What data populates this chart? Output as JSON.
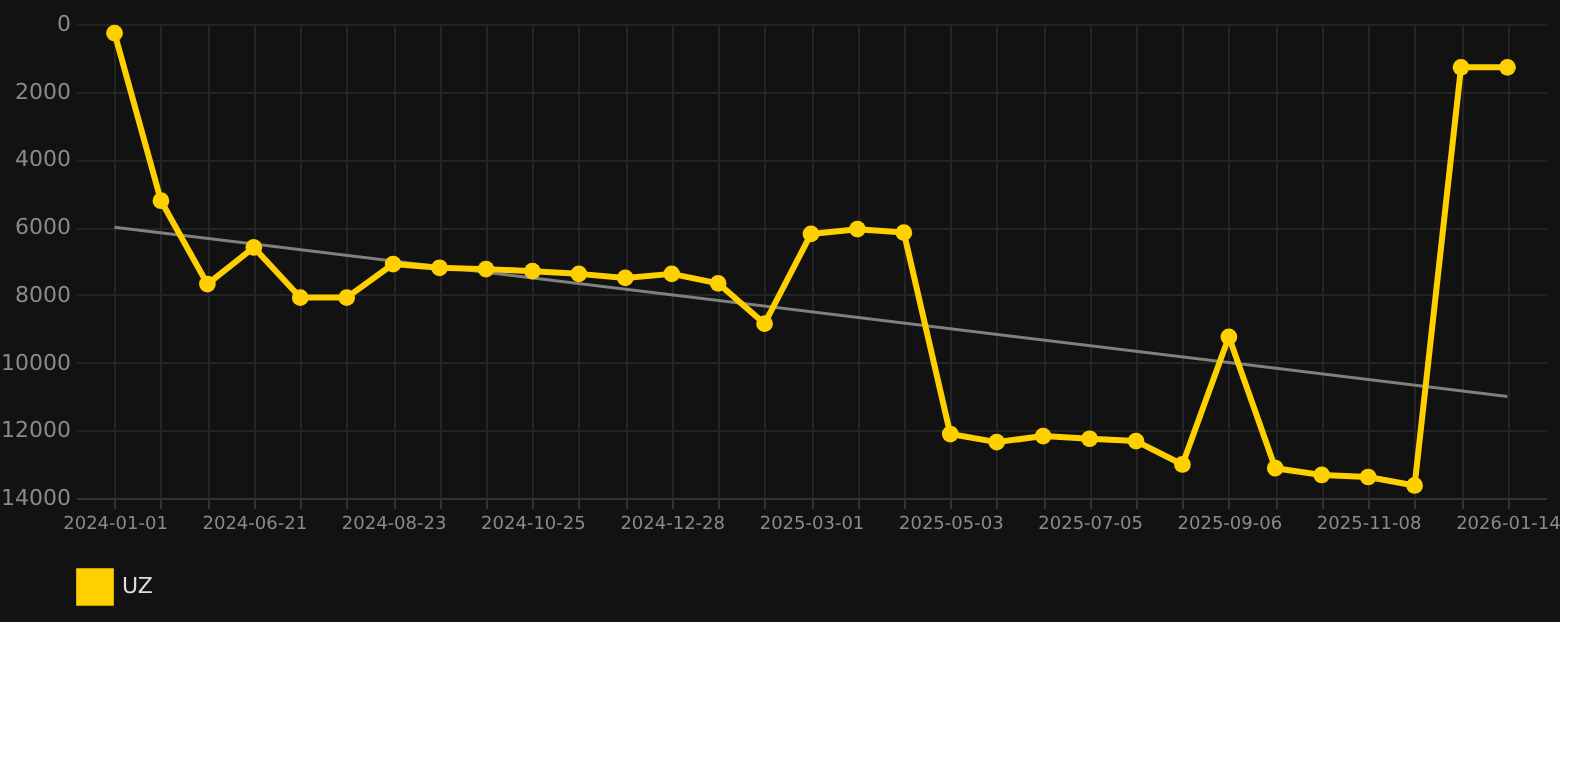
{
  "chart_data": {
    "type": "line",
    "categories": [
      "2024-01-01",
      null,
      null,
      "2024-06-21",
      null,
      null,
      "2024-08-23",
      null,
      null,
      "2024-10-25",
      null,
      null,
      "2024-12-28",
      null,
      null,
      "2025-03-01",
      null,
      null,
      "2025-05-03",
      null,
      null,
      "2025-07-05",
      null,
      null,
      "2025-09-06",
      null,
      null,
      "2025-11-08",
      null,
      null,
      "2026-01-14"
    ],
    "series": [
      {
        "name": "UZ",
        "color": "#ffd000",
        "marker": "circle",
        "values": [
          270,
          5220,
          7680,
          6600,
          8080,
          8080,
          7090,
          7200,
          7240,
          7300,
          7380,
          7500,
          7380,
          7660,
          8850,
          6200,
          6060,
          6160,
          12110,
          12350,
          12170,
          12250,
          12320,
          13010,
          9240,
          13120,
          13320,
          13380,
          13630,
          1280,
          1280
        ]
      },
      {
        "type": "line",
        "color": "#808080",
        "marker": "none",
        "values": [
          6000,
          null,
          null,
          null,
          null,
          null,
          null,
          null,
          null,
          null,
          null,
          null,
          null,
          null,
          null,
          null,
          null,
          null,
          null,
          null,
          null,
          null,
          null,
          null,
          null,
          null,
          null,
          null,
          null,
          null,
          11000
        ]
      }
    ],
    "ylim": [
      14000,
      0
    ],
    "yticks": [
      0,
      2000,
      4000,
      6000,
      8000,
      10000,
      12000,
      14000
    ],
    "grid": true,
    "legend": "bottom"
  }
}
